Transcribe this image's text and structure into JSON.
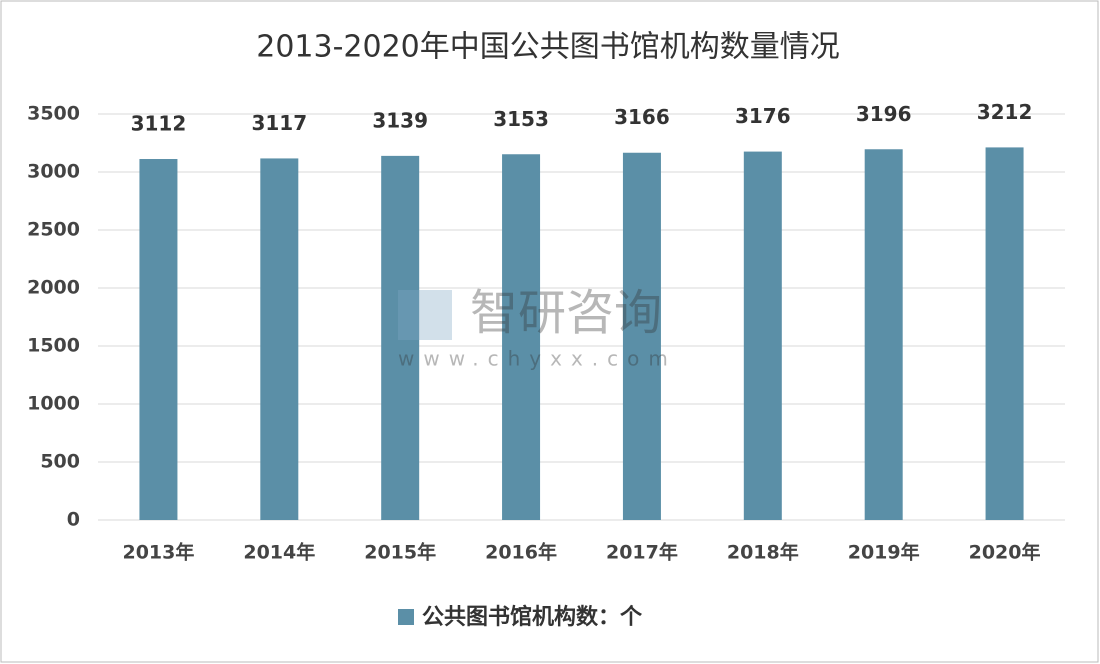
{
  "chart_data": {
    "type": "bar",
    "title": "2013-2020年中国公共图书馆机构数量情况",
    "categories": [
      "2013年",
      "2014年",
      "2015年",
      "2016年",
      "2017年",
      "2018年",
      "2019年",
      "2020年"
    ],
    "series": [
      {
        "name": "公共图书馆机构数：个",
        "color": "#5b8fa7",
        "values": [
          3112,
          3117,
          3139,
          3153,
          3166,
          3176,
          3196,
          3212
        ]
      }
    ],
    "ylim": [
      0,
      3500
    ],
    "yticks": [
      0,
      500,
      1000,
      1500,
      2000,
      2500,
      3000,
      3500
    ],
    "grid": true,
    "legend": "bottom",
    "watermark": [
      "智研咨询",
      "www.chyxx.com"
    ]
  }
}
